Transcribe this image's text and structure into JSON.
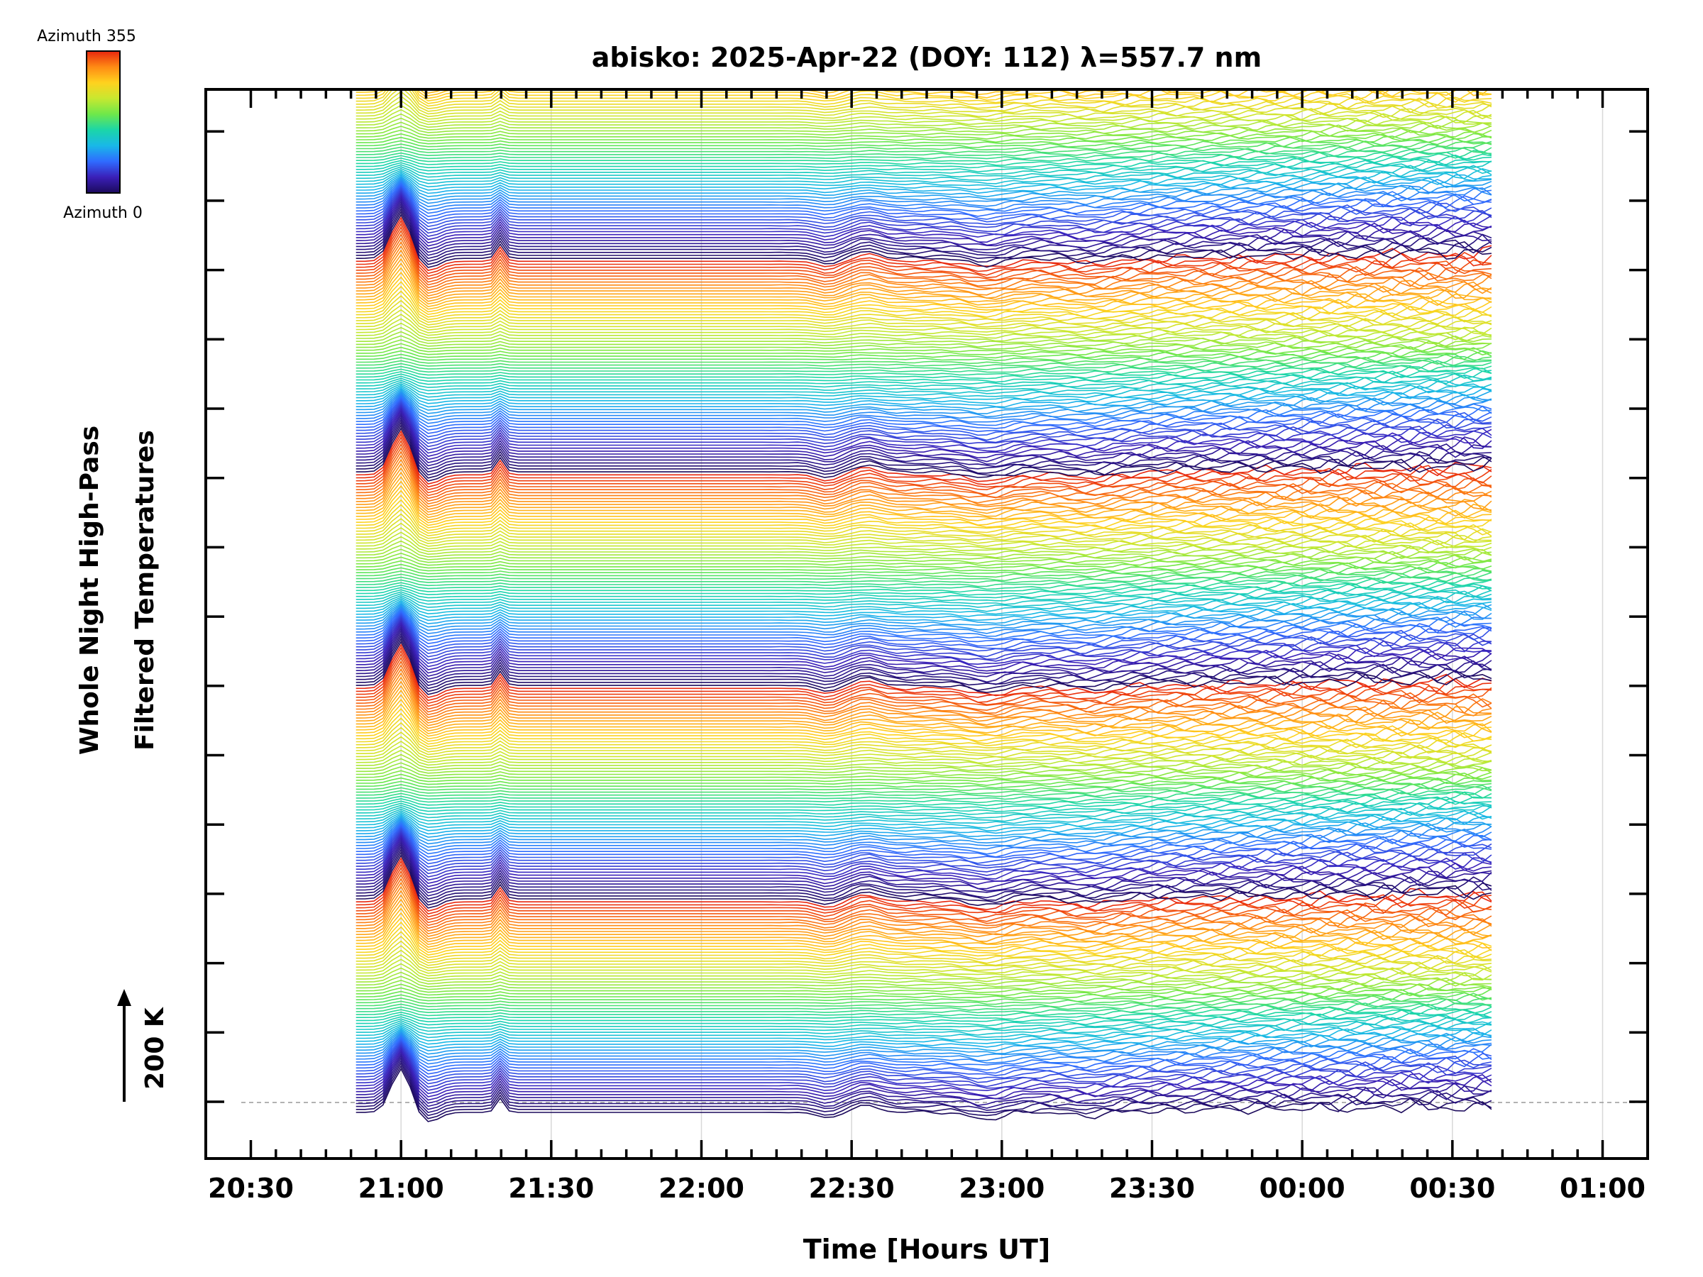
{
  "chart_data": {
    "type": "line",
    "title": "abisko: 2025-Apr-22 (DOY: 112) λ=557.7 nm",
    "xlabel": "Time [Hours UT]",
    "ylabel_line1": "Whole Night High-Pass",
    "ylabel_line2": "Filtered Temperatures",
    "scale_bar_label": "200 K",
    "colorbar": {
      "top_label": "Azimuth 355",
      "bottom_label": "Azimuth 0",
      "min": 0,
      "max": 355,
      "stops": [
        "#1c0a5c",
        "#3a1fb8",
        "#2f6bff",
        "#19b8e8",
        "#1bd6a8",
        "#6ee84a",
        "#c8e830",
        "#ffd21e",
        "#ff8a14",
        "#e8260e"
      ]
    },
    "x_ticks": [
      "20:30",
      "21:00",
      "21:30",
      "22:00",
      "22:30",
      "23:00",
      "23:30",
      "00:00",
      "00:30",
      "01:00"
    ],
    "x_tick_hours": [
      20.5,
      21.0,
      21.5,
      22.0,
      22.5,
      23.0,
      23.5,
      24.0,
      24.5,
      25.0
    ],
    "xlim_hours": [
      20.35,
      25.15
    ],
    "data_range_hours": [
      20.85,
      24.65
    ],
    "azimuth_step": 5,
    "azimuth_count": 72,
    "series_count": 5,
    "grid": true,
    "baseline_dashed": true
  }
}
